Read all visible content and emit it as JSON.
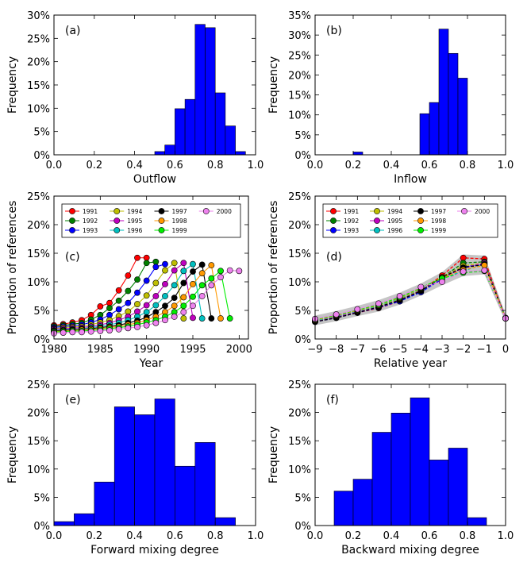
{
  "chart_data": [
    {
      "id": "a",
      "type": "bar",
      "panel_label": "(a)",
      "xlabel": "Outflow",
      "ylabel": "Frequency",
      "xlim": [
        0,
        1
      ],
      "ylim": [
        0,
        0.3
      ],
      "xticks": [
        0,
        0.2,
        0.4,
        0.6,
        0.8,
        1.0
      ],
      "xtick_labels": [
        "0.0",
        "0.2",
        "0.4",
        "0.6",
        "0.8",
        "1.0"
      ],
      "yticks": [
        0,
        0.05,
        0.1,
        0.15,
        0.2,
        0.25,
        0.3
      ],
      "ytick_labels": [
        "0%",
        "5%",
        "10%",
        "15%",
        "20%",
        "25%",
        "30%"
      ],
      "bin_width": 0.05,
      "bins": [
        0.5,
        0.55,
        0.6,
        0.65,
        0.7,
        0.75,
        0.8,
        0.85,
        0.9
      ],
      "values": [
        0.007,
        0.021,
        0.099,
        0.119,
        0.28,
        0.273,
        0.133,
        0.062,
        0.007
      ],
      "color": "#0000ff"
    },
    {
      "id": "b",
      "type": "bar",
      "panel_label": "(b)",
      "xlabel": "Inflow",
      "ylabel": "Frequency",
      "xlim": [
        0,
        1
      ],
      "ylim": [
        0,
        0.35
      ],
      "xticks": [
        0,
        0.2,
        0.4,
        0.6,
        0.8,
        1.0
      ],
      "xtick_labels": [
        "0.0",
        "0.2",
        "0.4",
        "0.6",
        "0.8",
        "1.0"
      ],
      "yticks": [
        0,
        0.05,
        0.1,
        0.15,
        0.2,
        0.25,
        0.3,
        0.35
      ],
      "ytick_labels": [
        "0%",
        "5%",
        "10%",
        "15%",
        "20%",
        "25%",
        "30%",
        "35%"
      ],
      "bin_width": 0.05,
      "bins": [
        0.2,
        0.55,
        0.6,
        0.65,
        0.7,
        0.75
      ],
      "values": [
        0.007,
        0.103,
        0.131,
        0.315,
        0.254,
        0.192
      ],
      "color": "#0000ff"
    },
    {
      "id": "c",
      "type": "line",
      "panel_label": "(c)",
      "xlabel": "Year",
      "ylabel": "Proportion of references",
      "xlim": [
        1980,
        2001
      ],
      "ylim": [
        0,
        0.25
      ],
      "xticks": [
        1980,
        1985,
        1990,
        1995,
        2000
      ],
      "xtick_labels": [
        "1980",
        "1985",
        "1990",
        "1995",
        "2000"
      ],
      "yticks": [
        0,
        0.05,
        0.1,
        0.15,
        0.2,
        0.25
      ],
      "ytick_labels": [
        "0%",
        "5%",
        "10%",
        "15%",
        "20%",
        "25%"
      ],
      "legend_position": "top",
      "legend": [
        "1991",
        "1992",
        "1993",
        "1994",
        "1995",
        "1996",
        "1997",
        "1998",
        "1999",
        "2000"
      ],
      "series": [
        {
          "name": "1991",
          "color": "#ff0000",
          "x": [
            1980,
            1981,
            1982,
            1983,
            1984,
            1985,
            1986,
            1987,
            1988,
            1989,
            1990
          ],
          "y": [
            0.024,
            0.026,
            0.029,
            0.033,
            0.042,
            0.057,
            0.063,
            0.085,
            0.111,
            0.142,
            0.142
          ]
        },
        {
          "name": "1992",
          "color": "#008000",
          "x": [
            1980,
            1981,
            1982,
            1983,
            1984,
            1985,
            1986,
            1987,
            1988,
            1989,
            1990,
            1991
          ],
          "y": [
            0.022,
            0.024,
            0.026,
            0.028,
            0.034,
            0.042,
            0.054,
            0.067,
            0.084,
            0.104,
            0.133,
            0.135
          ]
        },
        {
          "name": "1993",
          "color": "#0000ff",
          "x": [
            1980,
            1981,
            1982,
            1983,
            1984,
            1985,
            1986,
            1987,
            1988,
            1989,
            1990,
            1991,
            1992
          ],
          "y": [
            0.02,
            0.022,
            0.023,
            0.025,
            0.029,
            0.034,
            0.042,
            0.052,
            0.063,
            0.081,
            0.102,
            0.126,
            0.131
          ]
        },
        {
          "name": "1994",
          "color": "#bfbf00",
          "x": [
            1980,
            1981,
            1982,
            1983,
            1984,
            1985,
            1986,
            1987,
            1988,
            1989,
            1990,
            1991,
            1992,
            1993,
            1994
          ],
          "y": [
            0.018,
            0.02,
            0.021,
            0.022,
            0.025,
            0.029,
            0.033,
            0.04,
            0.048,
            0.061,
            0.076,
            0.098,
            0.12,
            0.133,
            0.036
          ]
        },
        {
          "name": "1995",
          "color": "#bf00bf",
          "x": [
            1980,
            1981,
            1982,
            1983,
            1984,
            1985,
            1986,
            1987,
            1988,
            1989,
            1990,
            1991,
            1992,
            1993,
            1994,
            1995
          ],
          "y": [
            0.017,
            0.018,
            0.019,
            0.02,
            0.022,
            0.025,
            0.028,
            0.033,
            0.039,
            0.048,
            0.059,
            0.075,
            0.096,
            0.12,
            0.133,
            0.037
          ]
        },
        {
          "name": "1996",
          "color": "#00bfbf",
          "x": [
            1980,
            1981,
            1982,
            1983,
            1984,
            1985,
            1986,
            1987,
            1988,
            1989,
            1990,
            1991,
            1992,
            1993,
            1994,
            1995,
            1996
          ],
          "y": [
            0.015,
            0.016,
            0.017,
            0.018,
            0.02,
            0.022,
            0.025,
            0.028,
            0.033,
            0.039,
            0.047,
            0.059,
            0.075,
            0.094,
            0.119,
            0.131,
            0.036
          ]
        },
        {
          "name": "1997",
          "color": "#000000",
          "x": [
            1980,
            1981,
            1982,
            1983,
            1984,
            1985,
            1986,
            1987,
            1988,
            1989,
            1990,
            1991,
            1992,
            1993,
            1994,
            1995,
            1996,
            1997
          ],
          "y": [
            0.014,
            0.015,
            0.016,
            0.017,
            0.018,
            0.02,
            0.022,
            0.024,
            0.028,
            0.032,
            0.038,
            0.047,
            0.058,
            0.072,
            0.098,
            0.118,
            0.13,
            0.036
          ]
        },
        {
          "name": "1998",
          "color": "#ff9900",
          "x": [
            1980,
            1981,
            1982,
            1983,
            1984,
            1985,
            1986,
            1987,
            1988,
            1989,
            1990,
            1991,
            1992,
            1993,
            1994,
            1995,
            1996,
            1997,
            1998
          ],
          "y": [
            0.013,
            0.014,
            0.015,
            0.016,
            0.017,
            0.018,
            0.02,
            0.022,
            0.025,
            0.028,
            0.033,
            0.039,
            0.047,
            0.058,
            0.073,
            0.096,
            0.115,
            0.129,
            0.036
          ]
        },
        {
          "name": "1999",
          "color": "#00ee00",
          "x": [
            1980,
            1981,
            1982,
            1983,
            1984,
            1985,
            1986,
            1987,
            1988,
            1989,
            1990,
            1991,
            1992,
            1993,
            1994,
            1995,
            1996,
            1997,
            1998,
            1999
          ],
          "y": [
            0.012,
            0.013,
            0.014,
            0.014,
            0.015,
            0.016,
            0.018,
            0.02,
            0.022,
            0.025,
            0.029,
            0.033,
            0.039,
            0.047,
            0.058,
            0.074,
            0.094,
            0.106,
            0.119,
            0.036
          ]
        },
        {
          "name": "2000",
          "color": "#ee82ee",
          "x": [
            1980,
            1981,
            1982,
            1983,
            1984,
            1985,
            1986,
            1987,
            1988,
            1989,
            1990,
            1991,
            1992,
            1993,
            1994,
            1995,
            1996,
            1997,
            1998,
            1999,
            2000
          ],
          "y": [
            0.01,
            0.011,
            0.012,
            0.012,
            0.013,
            0.014,
            0.015,
            0.017,
            0.019,
            0.021,
            0.024,
            0.028,
            0.033,
            0.039,
            0.047,
            0.058,
            0.075,
            0.094,
            0.108,
            0.12,
            0.119
          ]
        }
      ]
    },
    {
      "id": "d",
      "type": "line",
      "panel_label": "(d)",
      "xlabel": "Relative year",
      "ylabel": "Proportion of references",
      "xlim": [
        -9,
        0
      ],
      "ylim": [
        0,
        0.25
      ],
      "xticks": [
        -9,
        -8,
        -7,
        -6,
        -5,
        -4,
        -3,
        -2,
        -1,
        0
      ],
      "xtick_labels": [
        "−9",
        "−8",
        "−7",
        "−6",
        "−5",
        "−4",
        "−3",
        "−2",
        "−1",
        "0"
      ],
      "yticks": [
        0,
        0.05,
        0.1,
        0.15,
        0.2,
        0.25
      ],
      "ytick_labels": [
        "0%",
        "5%",
        "10%",
        "15%",
        "20%",
        "25%"
      ],
      "legend_position": "top",
      "x": [
        -9,
        -8,
        -7,
        -6,
        -5,
        -4,
        -3,
        -2,
        -1,
        0
      ],
      "series": [
        {
          "name": "1991",
          "color": "#ff0000",
          "y": [
            0.031,
            0.038,
            0.046,
            0.054,
            0.066,
            0.085,
            0.111,
            0.142,
            0.14,
            0.036
          ]
        },
        {
          "name": "1992",
          "color": "#008000",
          "y": [
            0.032,
            0.039,
            0.048,
            0.055,
            0.067,
            0.084,
            0.108,
            0.133,
            0.135,
            0.037
          ]
        },
        {
          "name": "1993",
          "color": "#0000ff",
          "y": [
            0.03,
            0.037,
            0.046,
            0.055,
            0.066,
            0.082,
            0.105,
            0.126,
            0.131,
            0.036
          ]
        },
        {
          "name": "1994",
          "color": "#bfbf00",
          "y": [
            0.033,
            0.04,
            0.049,
            0.057,
            0.07,
            0.086,
            0.108,
            0.128,
            0.133,
            0.036
          ]
        },
        {
          "name": "1995",
          "color": "#bf00bf",
          "y": [
            0.031,
            0.039,
            0.047,
            0.056,
            0.068,
            0.085,
            0.106,
            0.124,
            0.133,
            0.037
          ]
        },
        {
          "name": "1996",
          "color": "#00bfbf",
          "y": [
            0.032,
            0.04,
            0.049,
            0.058,
            0.071,
            0.088,
            0.106,
            0.119,
            0.131,
            0.036
          ]
        },
        {
          "name": "1997",
          "color": "#000000",
          "y": [
            0.03,
            0.037,
            0.046,
            0.056,
            0.068,
            0.084,
            0.108,
            0.125,
            0.13,
            0.036
          ]
        },
        {
          "name": "1998",
          "color": "#ff9900",
          "y": [
            0.033,
            0.041,
            0.05,
            0.059,
            0.072,
            0.089,
            0.107,
            0.121,
            0.129,
            0.036
          ]
        },
        {
          "name": "1999",
          "color": "#00ee00",
          "y": [
            0.034,
            0.042,
            0.051,
            0.06,
            0.073,
            0.09,
            0.106,
            0.116,
            0.119,
            0.036
          ]
        },
        {
          "name": "2000",
          "color": "#ee82ee",
          "y": [
            0.035,
            0.043,
            0.052,
            0.062,
            0.075,
            0.091,
            0.1,
            0.118,
            0.12,
            0.036
          ]
        }
      ]
    },
    {
      "id": "e",
      "type": "bar",
      "panel_label": "(e)",
      "xlabel": "Forward mixing degree",
      "ylabel": "Frequency",
      "xlim": [
        0,
        1
      ],
      "ylim": [
        0,
        0.25
      ],
      "xticks": [
        0,
        0.2,
        0.4,
        0.6,
        0.8,
        1.0
      ],
      "xtick_labels": [
        "0.0",
        "0.2",
        "0.4",
        "0.6",
        "0.8",
        "1.0"
      ],
      "yticks": [
        0,
        0.05,
        0.1,
        0.15,
        0.2,
        0.25
      ],
      "ytick_labels": [
        "0%",
        "5%",
        "10%",
        "15%",
        "20%",
        "25%"
      ],
      "bin_width": 0.1,
      "bins": [
        0.0,
        0.1,
        0.2,
        0.3,
        0.4,
        0.5,
        0.6,
        0.7,
        0.8
      ],
      "values": [
        0.007,
        0.021,
        0.077,
        0.21,
        0.196,
        0.224,
        0.105,
        0.147,
        0.014
      ],
      "color": "#0000ff"
    },
    {
      "id": "f",
      "type": "bar",
      "panel_label": "(f)",
      "xlabel": "Backward mixing degree",
      "ylabel": "Frequency",
      "xlim": [
        0,
        1
      ],
      "ylim": [
        0,
        0.25
      ],
      "xticks": [
        0,
        0.2,
        0.4,
        0.6,
        0.8,
        1.0
      ],
      "xtick_labels": [
        "0.0",
        "0.2",
        "0.4",
        "0.6",
        "0.8",
        "1.0"
      ],
      "yticks": [
        0,
        0.05,
        0.1,
        0.15,
        0.2,
        0.25
      ],
      "ytick_labels": [
        "0%",
        "5%",
        "10%",
        "15%",
        "20%",
        "25%"
      ],
      "bin_width": 0.1,
      "bins": [
        0.1,
        0.2,
        0.3,
        0.4,
        0.5,
        0.6,
        0.7,
        0.8
      ],
      "values": [
        0.061,
        0.082,
        0.165,
        0.199,
        0.226,
        0.116,
        0.137,
        0.014
      ],
      "color": "#0000ff"
    }
  ]
}
